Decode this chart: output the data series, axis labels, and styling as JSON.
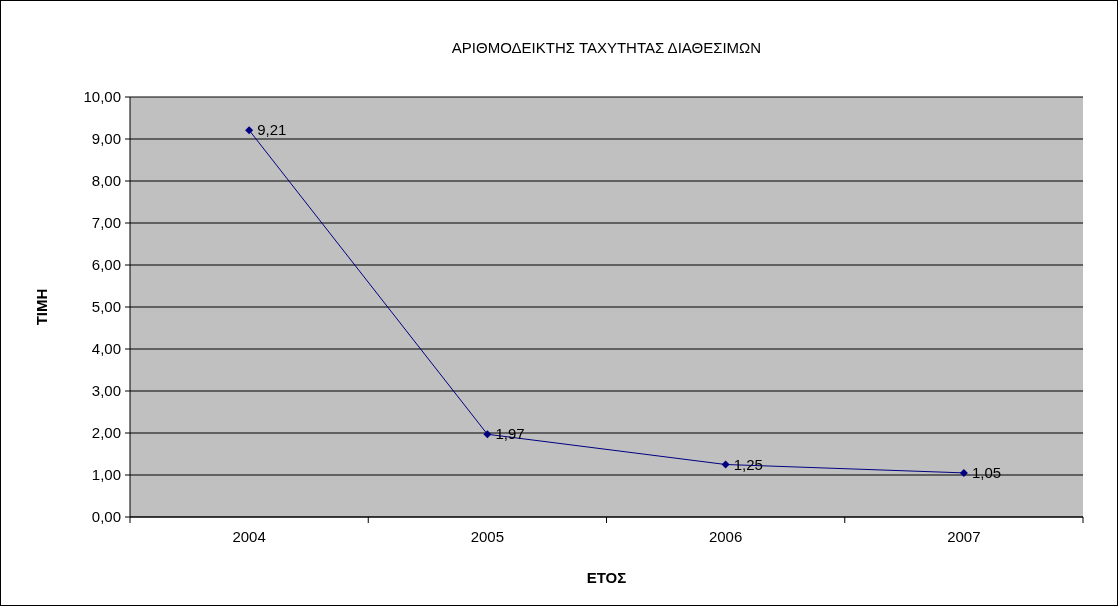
{
  "chart_data": {
    "type": "line",
    "title": "ΑΡΙΘΜΟΔΕΙΚΤΗΣ ΤΑΧΥΤΗΤΑΣ ΔΙΑΘΕΣΙΜΩΝ",
    "xlabel": "ΕΤΟΣ",
    "ylabel": "ΤΙΜΗ",
    "categories": [
      "2004",
      "2005",
      "2006",
      "2007"
    ],
    "series": [
      {
        "color": "#000080",
        "values": [
          9.21,
          1.97,
          1.25,
          1.05
        ],
        "value_labels": [
          "9,21",
          "1,97",
          "1,25",
          "1,05"
        ]
      }
    ],
    "ylim": [
      0,
      10
    ],
    "yticks": [
      {
        "value": 0,
        "label": "0,00"
      },
      {
        "value": 1,
        "label": "1,00"
      },
      {
        "value": 2,
        "label": "2,00"
      },
      {
        "value": 3,
        "label": "3,00"
      },
      {
        "value": 4,
        "label": "4,00"
      },
      {
        "value": 5,
        "label": "5,00"
      },
      {
        "value": 6,
        "label": "6,00"
      },
      {
        "value": 7,
        "label": "7,00"
      },
      {
        "value": 8,
        "label": "8,00"
      },
      {
        "value": 9,
        "label": "9,00"
      },
      {
        "value": 10,
        "label": "10,00"
      }
    ],
    "grid": "y",
    "marker": "diamond",
    "line_style": "solid"
  }
}
